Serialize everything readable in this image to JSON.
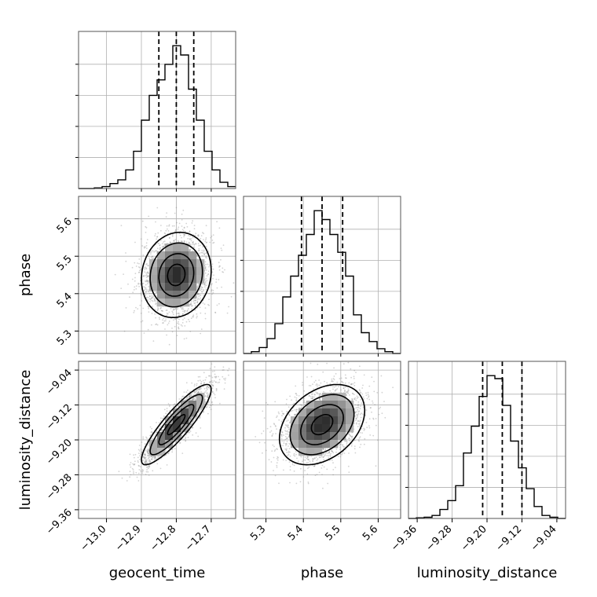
{
  "chart_data": {
    "type": "corner",
    "parameters": [
      "geocent_time",
      "phase",
      "luminosity_distance"
    ],
    "axis_labels": {
      "geocent_time": "geocent_time",
      "phase": "phase",
      "luminosity_distance": "luminosity_distance"
    },
    "ranges": {
      "geocent_time": [
        -13.08,
        -12.63
      ],
      "phase": [
        5.24,
        5.66
      ],
      "luminosity_distance": [
        -9.38,
        -9.02
      ]
    },
    "ticks": {
      "geocent_time": [
        -13.0,
        -12.9,
        -12.8,
        -12.7
      ],
      "phase": [
        5.3,
        5.4,
        5.5,
        5.6
      ],
      "luminosity_distance": [
        -9.36,
        -9.28,
        -9.2,
        -9.12,
        -9.04
      ]
    },
    "tick_labels": {
      "geocent_time": [
        "−13.0",
        "−12.9",
        "−12.8",
        "−12.7"
      ],
      "phase": [
        "5.3",
        "5.4",
        "5.5",
        "5.6"
      ],
      "luminosity_distance": [
        "−9.36",
        "−9.28",
        "−9.20",
        "−9.12",
        "−9.04"
      ]
    },
    "quantiles": {
      "geocent_time": [
        -12.85,
        -12.8,
        -12.75
      ],
      "phase": [
        5.395,
        5.45,
        5.505
      ],
      "luminosity_distance": [
        -9.21,
        -9.165,
        -9.12
      ]
    },
    "marginals": {
      "geocent_time": {
        "edges": [
          -13.08,
          -13.0575,
          -13.035,
          -13.0125,
          -12.99,
          -12.9675,
          -12.945,
          -12.9225,
          -12.9,
          -12.8775,
          -12.855,
          -12.8325,
          -12.81,
          -12.7875,
          -12.765,
          -12.7425,
          -12.72,
          -12.6975,
          -12.675,
          -12.6525,
          -12.63
        ],
        "counts": [
          0,
          0,
          1,
          3,
          8,
          14,
          30,
          60,
          110,
          150,
          175,
          200,
          230,
          215,
          160,
          110,
          60,
          30,
          10,
          3
        ]
      },
      "phase": {
        "edges": [
          5.24,
          5.261,
          5.282,
          5.303,
          5.324,
          5.345,
          5.366,
          5.387,
          5.408,
          5.429,
          5.45,
          5.471,
          5.492,
          5.513,
          5.534,
          5.555,
          5.576,
          5.597,
          5.618,
          5.639,
          5.66
        ],
        "counts": [
          0,
          3,
          10,
          25,
          50,
          95,
          130,
          165,
          200,
          240,
          225,
          200,
          170,
          130,
          65,
          35,
          20,
          8,
          3,
          0
        ]
      },
      "luminosity_distance": {
        "edges": [
          -9.38,
          -9.362,
          -9.344,
          -9.326,
          -9.308,
          -9.29,
          -9.272,
          -9.254,
          -9.236,
          -9.218,
          -9.2,
          -9.182,
          -9.164,
          -9.146,
          -9.128,
          -9.11,
          -9.092,
          -9.074,
          -9.056,
          -9.038,
          -9.02
        ],
        "counts": [
          0,
          1,
          2,
          5,
          15,
          30,
          55,
          110,
          155,
          205,
          240,
          235,
          190,
          130,
          85,
          50,
          20,
          5,
          2,
          0
        ]
      }
    },
    "joint_2d": [
      {
        "x_param": "geocent_time",
        "y_param": "phase",
        "center": [
          -12.8,
          5.45
        ],
        "sigma": [
          0.05,
          0.057
        ],
        "correlation": 0.1
      },
      {
        "x_param": "geocent_time",
        "y_param": "luminosity_distance",
        "center": [
          -12.8,
          -9.165
        ],
        "sigma": [
          0.05,
          0.046
        ],
        "correlation": 0.88
      },
      {
        "x_param": "phase",
        "y_param": "luminosity_distance",
        "center": [
          5.45,
          -9.165
        ],
        "sigma": [
          0.057,
          0.046
        ],
        "correlation": 0.35
      }
    ],
    "grid": true
  }
}
